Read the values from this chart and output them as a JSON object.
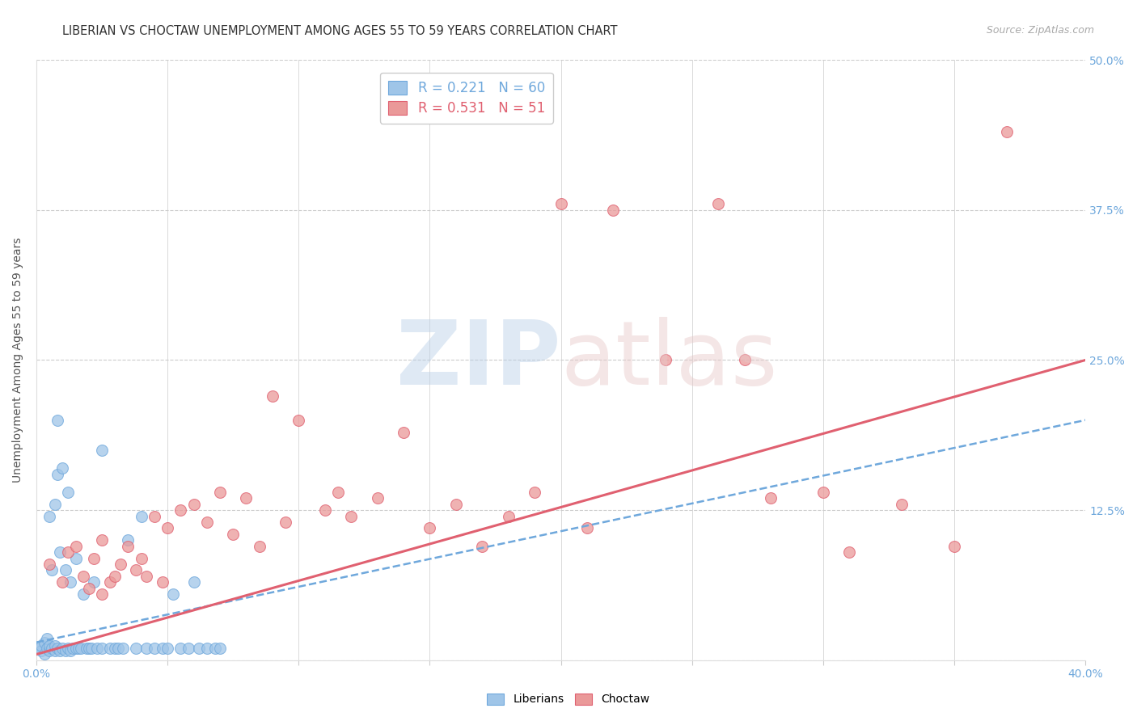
{
  "title": "LIBERIAN VS CHOCTAW UNEMPLOYMENT AMONG AGES 55 TO 59 YEARS CORRELATION CHART",
  "source": "Source: ZipAtlas.com",
  "ylabel": "Unemployment Among Ages 55 to 59 years",
  "xlim": [
    0.0,
    0.4
  ],
  "ylim": [
    0.0,
    0.5
  ],
  "xticks": [
    0.0,
    0.05,
    0.1,
    0.15,
    0.2,
    0.25,
    0.3,
    0.35,
    0.4
  ],
  "yticks": [
    0.0,
    0.125,
    0.25,
    0.375,
    0.5
  ],
  "liberian_R": 0.221,
  "liberian_N": 60,
  "choctaw_R": 0.531,
  "choctaw_N": 51,
  "liberian_color": "#9fc5e8",
  "choctaw_color": "#ea9999",
  "liberian_edge_color": "#6fa8dc",
  "choctaw_edge_color": "#e06070",
  "liberian_line_color": "#6fa8dc",
  "choctaw_line_color": "#e06070",
  "background_color": "#ffffff",
  "grid_color": "#cccccc",
  "legend_R_color": "#6fa8dc",
  "legend_N_color": "#ff0000",
  "axis_tick_color": "#6fa8dc",
  "liberian_scatter_x": [
    0.001,
    0.002,
    0.002,
    0.003,
    0.003,
    0.004,
    0.004,
    0.005,
    0.005,
    0.005,
    0.006,
    0.006,
    0.007,
    0.007,
    0.007,
    0.008,
    0.008,
    0.009,
    0.009,
    0.01,
    0.01,
    0.011,
    0.011,
    0.012,
    0.012,
    0.013,
    0.013,
    0.014,
    0.015,
    0.015,
    0.016,
    0.017,
    0.018,
    0.019,
    0.02,
    0.021,
    0.022,
    0.023,
    0.025,
    0.025,
    0.028,
    0.03,
    0.031,
    0.033,
    0.035,
    0.038,
    0.04,
    0.042,
    0.045,
    0.048,
    0.05,
    0.052,
    0.055,
    0.058,
    0.06,
    0.062,
    0.065,
    0.068,
    0.07,
    0.008
  ],
  "liberian_scatter_y": [
    0.01,
    0.008,
    0.012,
    0.005,
    0.015,
    0.01,
    0.018,
    0.008,
    0.012,
    0.12,
    0.01,
    0.075,
    0.008,
    0.012,
    0.13,
    0.01,
    0.155,
    0.008,
    0.09,
    0.01,
    0.16,
    0.008,
    0.075,
    0.01,
    0.14,
    0.008,
    0.065,
    0.01,
    0.01,
    0.085,
    0.01,
    0.01,
    0.055,
    0.01,
    0.01,
    0.01,
    0.065,
    0.01,
    0.01,
    0.175,
    0.01,
    0.01,
    0.01,
    0.01,
    0.1,
    0.01,
    0.12,
    0.01,
    0.01,
    0.01,
    0.01,
    0.055,
    0.01,
    0.01,
    0.065,
    0.01,
    0.01,
    0.01,
    0.01,
    0.2
  ],
  "choctaw_scatter_x": [
    0.005,
    0.01,
    0.012,
    0.015,
    0.018,
    0.02,
    0.022,
    0.025,
    0.025,
    0.028,
    0.03,
    0.032,
    0.035,
    0.038,
    0.04,
    0.042,
    0.045,
    0.048,
    0.05,
    0.055,
    0.06,
    0.065,
    0.07,
    0.075,
    0.08,
    0.085,
    0.09,
    0.095,
    0.1,
    0.11,
    0.115,
    0.12,
    0.13,
    0.14,
    0.15,
    0.16,
    0.17,
    0.18,
    0.19,
    0.2,
    0.21,
    0.22,
    0.24,
    0.26,
    0.27,
    0.28,
    0.3,
    0.31,
    0.33,
    0.35,
    0.37
  ],
  "choctaw_scatter_y": [
    0.08,
    0.065,
    0.09,
    0.095,
    0.07,
    0.06,
    0.085,
    0.1,
    0.055,
    0.065,
    0.07,
    0.08,
    0.095,
    0.075,
    0.085,
    0.07,
    0.12,
    0.065,
    0.11,
    0.125,
    0.13,
    0.115,
    0.14,
    0.105,
    0.135,
    0.095,
    0.22,
    0.115,
    0.2,
    0.125,
    0.14,
    0.12,
    0.135,
    0.19,
    0.11,
    0.13,
    0.095,
    0.12,
    0.14,
    0.38,
    0.11,
    0.375,
    0.25,
    0.38,
    0.25,
    0.135,
    0.14,
    0.09,
    0.13,
    0.095,
    0.44
  ]
}
